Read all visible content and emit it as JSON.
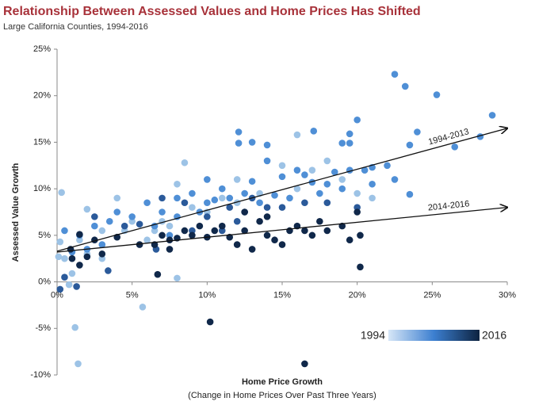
{
  "chart_data": {
    "type": "scatter",
    "title": "Relationship Between Assessed Values and Home Prices Has Shifted",
    "subtitle": "Large California Counties, 1994-2016",
    "xlabel": "Home Price Growth",
    "xlabel_note": "(Change in Home Prices Over Past Three Years)",
    "ylabel": "Assessed Value Growth",
    "xlim": [
      0,
      30
    ],
    "xticks": [
      {
        "value": 0,
        "label": "0%"
      },
      {
        "value": 5,
        "label": "5%"
      },
      {
        "value": 10,
        "label": "10%"
      },
      {
        "value": 15,
        "label": "15%"
      },
      {
        "value": 20,
        "label": "20%"
      },
      {
        "value": 25,
        "label": "25%"
      },
      {
        "value": 30,
        "label": "30%"
      }
    ],
    "ylim": [
      -10,
      25
    ],
    "yticks": [
      {
        "value": -10,
        "label": "-10%"
      },
      {
        "value": -5,
        "label": "-5%"
      },
      {
        "value": 0,
        "label": "0%"
      },
      {
        "value": 5,
        "label": "5%"
      },
      {
        "value": 10,
        "label": "10%"
      },
      {
        "value": 15,
        "label": "15%"
      },
      {
        "value": 20,
        "label": "20%"
      },
      {
        "value": 25,
        "label": "25%"
      }
    ],
    "series": [
      {
        "color": "#9dc3e6",
        "x": [
          1.2,
          1.4,
          0.3,
          0.5,
          1,
          0.8,
          2,
          3,
          4.5,
          6,
          5.7,
          6.5,
          7.5,
          8,
          8.5,
          8,
          10,
          12,
          16,
          17,
          18,
          19,
          20,
          21,
          4,
          3,
          2,
          0.2,
          0.1,
          1.5,
          9,
          11,
          13.5,
          15,
          16,
          7,
          5,
          12
        ],
        "y": [
          -4.9,
          -8.8,
          9.6,
          2.5,
          0.9,
          -0.3,
          3,
          2.5,
          5.5,
          4.5,
          -2.7,
          5.5,
          6,
          10.5,
          12.8,
          0.4,
          7.5,
          11,
          15.8,
          12,
          13,
          11,
          9.5,
          9,
          9,
          5.5,
          7.8,
          4.3,
          2.7,
          4.5,
          8,
          9,
          9.5,
          12.5,
          10,
          6.5,
          6.5,
          8.5
        ]
      },
      {
        "color": "#4f8fd6",
        "x": [
          22.5,
          23.2,
          25.3,
          29,
          28.2,
          26.5,
          24,
          23.5,
          20,
          21,
          19.5,
          19,
          19.5,
          17.1,
          12.1,
          12.1,
          13,
          14,
          14,
          15,
          16,
          17,
          18,
          19,
          20.5,
          22.5,
          23.5,
          22,
          21,
          8,
          9,
          10,
          11,
          11.5,
          12.5,
          13.5,
          14.5,
          15.5,
          9.5,
          8,
          7,
          6,
          5,
          4,
          3.5,
          2.5,
          1.5,
          0.5,
          3,
          2,
          1,
          6.5,
          7.5,
          10.5,
          13,
          16.5,
          18.5,
          19.5,
          17.5,
          10
        ],
        "y": [
          22.3,
          21,
          20.1,
          17.9,
          15.6,
          14.5,
          16.1,
          14.7,
          17.4,
          12.3,
          15.9,
          14.9,
          14.9,
          16.2,
          16.1,
          14.9,
          15,
          14.7,
          13,
          11.3,
          12,
          10.7,
          10.5,
          10,
          12,
          11,
          9.4,
          12.5,
          10.5,
          9,
          9.5,
          8.5,
          10,
          9,
          9.5,
          8.5,
          9.3,
          9,
          7.5,
          7,
          7.5,
          8.5,
          7,
          7.5,
          6.5,
          6,
          5,
          5.5,
          4,
          3.5,
          3.2,
          6,
          5,
          8.8,
          10.8,
          11.5,
          11.8,
          12,
          9.5,
          11
        ]
      },
      {
        "color": "#2b5a9a",
        "x": [
          1.3,
          0.2,
          0.5,
          3.4,
          6.6,
          5.5,
          7,
          8.5,
          10,
          11.5,
          12.5,
          13,
          14,
          15,
          16.5,
          18,
          20,
          2.5,
          4.5,
          9,
          11,
          12
        ],
        "y": [
          -0.5,
          -0.8,
          0.5,
          1.2,
          3.5,
          6.2,
          9,
          8.5,
          7,
          8,
          7.5,
          9,
          8,
          8,
          8.5,
          8.5,
          8,
          7,
          6,
          5.5,
          5.5,
          6.5
        ]
      },
      {
        "color": "#10284a",
        "x": [
          10.2,
          16.5,
          20.2,
          6.7,
          1.5,
          0.9,
          2.5,
          4,
          5.5,
          6.5,
          7,
          7.5,
          8,
          9,
          10,
          10.5,
          11,
          11.5,
          12,
          12.5,
          13,
          13.5,
          14,
          14.5,
          15,
          15.5,
          16,
          16.5,
          17,
          17.5,
          18,
          19,
          19.5,
          20,
          20.2,
          14,
          12.5,
          9.5,
          8.5,
          3,
          2,
          1,
          7.5,
          1.5
        ],
        "y": [
          -4.3,
          -8.8,
          1.6,
          0.8,
          1.8,
          3.5,
          4.5,
          4.8,
          4,
          4,
          5,
          4.5,
          4.7,
          5,
          4.8,
          5.5,
          6,
          4.8,
          4,
          5.5,
          3.5,
          6.5,
          5,
          4.5,
          4,
          5.5,
          6,
          5.5,
          5,
          6.5,
          5.5,
          6,
          4.5,
          7.5,
          5,
          7,
          7.5,
          6,
          5.5,
          3,
          2.7,
          2.5,
          3.5,
          5.1
        ]
      }
    ],
    "trends": [
      {
        "name": "1994-2013",
        "x": [
          0,
          30
        ],
        "y": [
          3.3,
          16.5
        ]
      },
      {
        "name": "2014-2016",
        "x": [
          0,
          30
        ],
        "y": [
          3.2,
          8
        ]
      }
    ],
    "colorbar": {
      "labels": [
        1994,
        2016
      ],
      "colors": [
        "#d6e6f7",
        "#3c7fd0",
        "#0d2340"
      ]
    }
  }
}
